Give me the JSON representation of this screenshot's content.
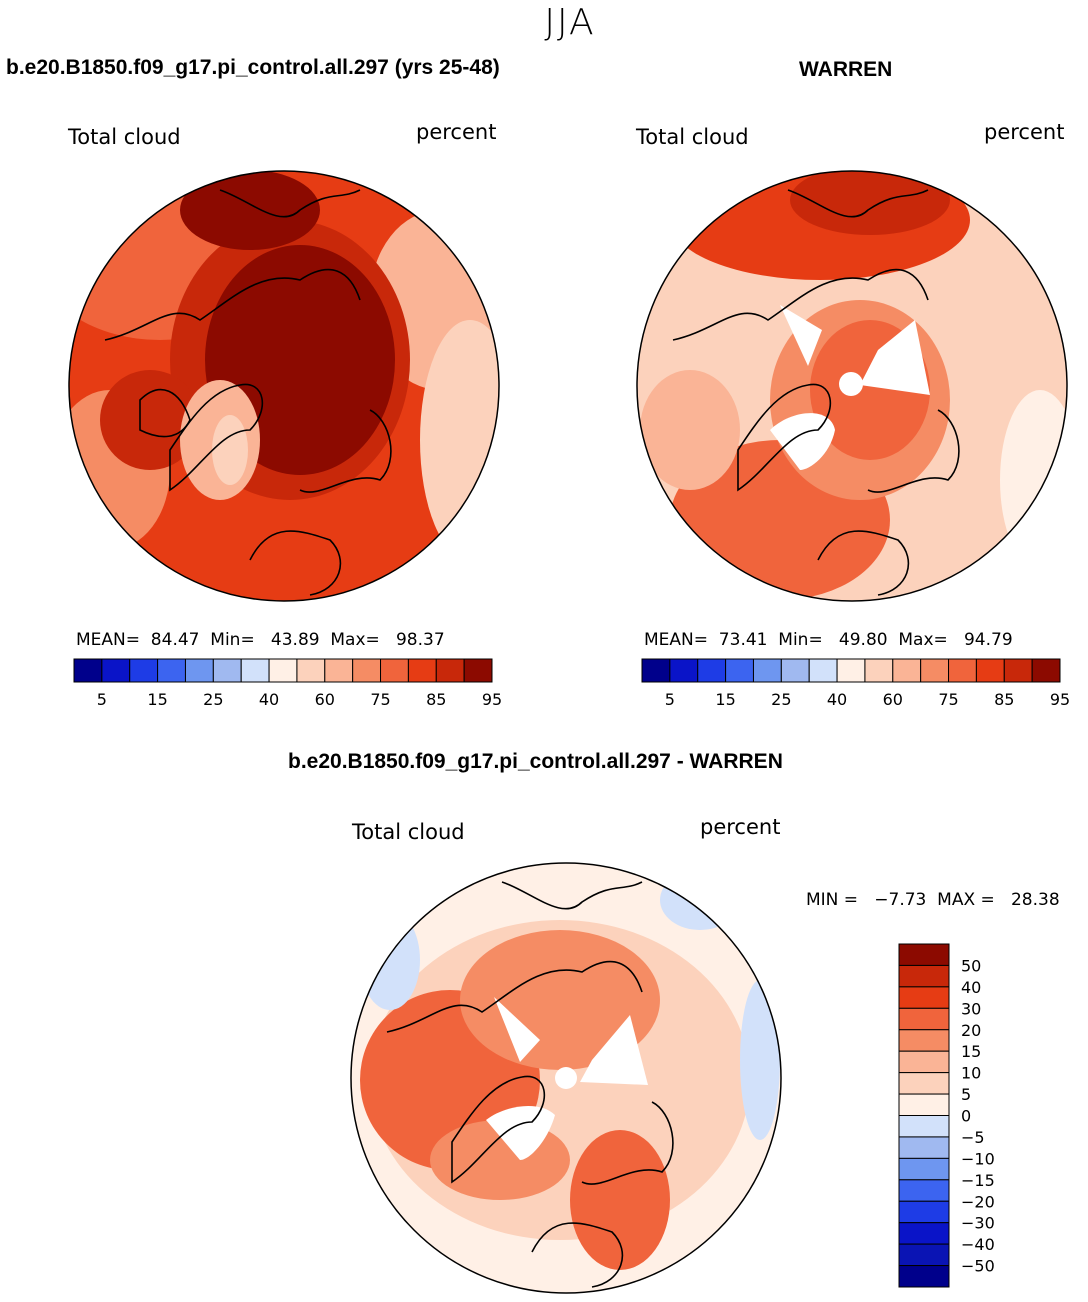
{
  "season": "JJA",
  "panels": [
    {
      "title": "b.e20.B1850.f09_g17.pi_control.all.297 (yrs 25-48)",
      "left_label": "Total cloud",
      "right_label": "percent",
      "stats": "MEAN=  84.47  Min=   43.89  Max=   98.37"
    },
    {
      "title": "WARREN",
      "left_label": "Total cloud",
      "right_label": "percent",
      "stats": "MEAN=  73.41  Min=   49.80  Max=   94.79"
    },
    {
      "title": "b.e20.B1850.f09_g17.pi_control.all.297 - WARREN",
      "left_label": "Total cloud",
      "right_label": "percent",
      "stats": "MIN =   −7.73  MAX =   28.38"
    }
  ],
  "colors": {
    "abs": [
      "#00008b",
      "#0a14c8",
      "#1e3ce6",
      "#3c64f0",
      "#6e96f0",
      "#a0b9f0",
      "#d2e1fa",
      "#fff0e6",
      "#fcd2bc",
      "#fab496",
      "#f58c64",
      "#f0643c",
      "#e63c14",
      "#c8280a",
      "#8c0a00"
    ],
    "diff": [
      "#00008b",
      "#0a14c8",
      "#1e3ce6",
      "#3c64f0",
      "#6e96f0",
      "#a0b9f0",
      "#d2e1fa",
      "#fff0e6",
      "#fcd2bc",
      "#fab496",
      "#f58c64",
      "#f0643c",
      "#e63c14",
      "#c8280a",
      "#8c0a00"
    ]
  },
  "colorbar_abs": {
    "tick_labels": [
      "5",
      "15",
      "25",
      "40",
      "60",
      "75",
      "85",
      "95"
    ]
  },
  "colorbar_diff": {
    "tick_labels": [
      "50",
      "40",
      "30",
      "20",
      "15",
      "10",
      "5",
      "0",
      "−5",
      "−10",
      "−15",
      "−20",
      "−30",
      "−40",
      "−50"
    ]
  },
  "chart_data": [
    {
      "type": "heatmap",
      "title": "b.e20.B1850.f09_g17.pi_control.all.297 (yrs 25-48)",
      "variable": "Total cloud",
      "units": "percent",
      "mean": 84.47,
      "min": 43.89,
      "max": 98.37,
      "levels": [
        5,
        15,
        25,
        40,
        60,
        75,
        85,
        95
      ]
    },
    {
      "type": "heatmap",
      "title": "WARREN",
      "variable": "Total cloud",
      "units": "percent",
      "mean": 73.41,
      "min": 49.8,
      "max": 94.79,
      "levels": [
        5,
        15,
        25,
        40,
        60,
        75,
        85,
        95
      ]
    },
    {
      "type": "heatmap",
      "title": "b.e20.B1850.f09_g17.pi_control.all.297 - WARREN",
      "variable": "Total cloud",
      "units": "percent",
      "min": -7.73,
      "max": 28.38,
      "levels": [
        -50,
        -40,
        -30,
        -20,
        -15,
        -10,
        -5,
        0,
        5,
        10,
        15,
        20,
        30,
        40,
        50
      ]
    }
  ]
}
